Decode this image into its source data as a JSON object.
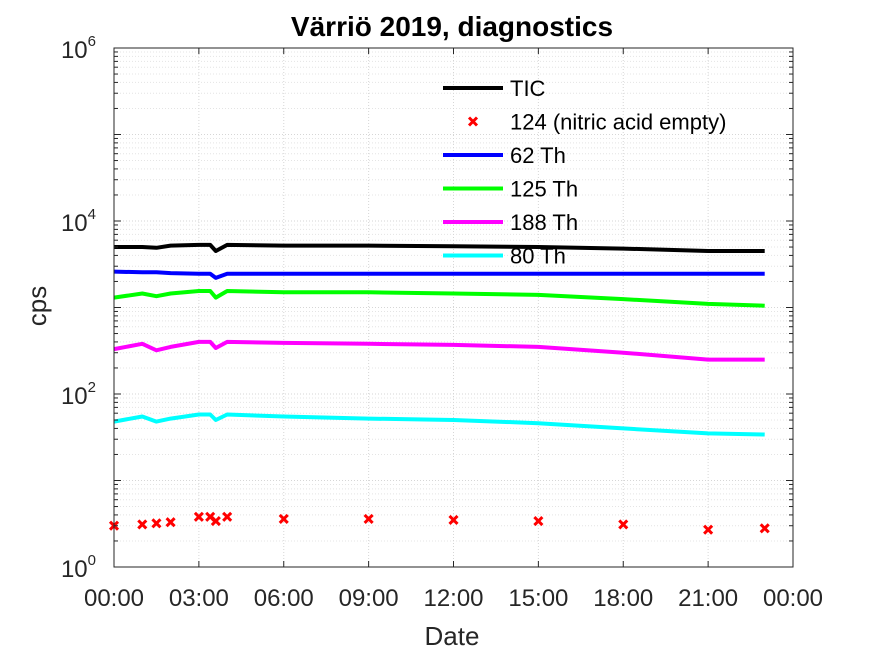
{
  "chart_data": {
    "type": "line",
    "title": "Värriö 2019, diagnostics",
    "xlabel": "Date",
    "ylabel": "cps",
    "yscale": "log",
    "ylim": [
      1,
      1000000
    ],
    "xlim": [
      "00:00",
      "00:00"
    ],
    "x_ticks": [
      "00:00",
      "03:00",
      "06:00",
      "09:00",
      "12:00",
      "15:00",
      "18:00",
      "21:00",
      "00:00"
    ],
    "y_ticks": [
      {
        "base": "10",
        "exp": "0"
      },
      {
        "base": "10",
        "exp": "2"
      },
      {
        "base": "10",
        "exp": "4"
      },
      {
        "base": "10",
        "exp": "6"
      }
    ],
    "grid": true,
    "legend_position": "top-right",
    "x_hours": [
      0,
      1,
      1.5,
      2,
      3,
      3.4,
      3.6,
      4,
      6,
      9,
      12,
      15,
      18,
      21,
      23
    ],
    "series": [
      {
        "name": "TIC",
        "color": "#000000",
        "style": "line",
        "values": [
          5000,
          5000,
          4900,
          5200,
          5300,
          5300,
          4500,
          5300,
          5200,
          5200,
          5100,
          5000,
          4800,
          4500,
          4500
        ]
      },
      {
        "name": "124 (nitric acid empty)",
        "color": "#ff0000",
        "style": "marker",
        "values": [
          3.0,
          3.1,
          3.2,
          3.3,
          3.8,
          3.8,
          3.4,
          3.8,
          3.6,
          3.6,
          3.5,
          3.4,
          3.1,
          2.7,
          2.8
        ]
      },
      {
        "name": "62 Th",
        "color": "#0000ff",
        "style": "line",
        "values": [
          2600,
          2550,
          2550,
          2500,
          2450,
          2450,
          2200,
          2450,
          2450,
          2450,
          2450,
          2450,
          2450,
          2450,
          2450
        ]
      },
      {
        "name": "125 Th",
        "color": "#00ff00",
        "style": "line",
        "values": [
          1300,
          1450,
          1350,
          1450,
          1550,
          1550,
          1300,
          1550,
          1500,
          1500,
          1450,
          1400,
          1250,
          1100,
          1050
        ]
      },
      {
        "name": "188 Th",
        "color": "#ff00ff",
        "style": "line",
        "values": [
          330,
          380,
          320,
          350,
          400,
          400,
          340,
          400,
          390,
          380,
          370,
          350,
          300,
          250,
          250
        ]
      },
      {
        "name": "80 Th",
        "color": "#00ffff",
        "style": "line",
        "values": [
          48,
          55,
          48,
          52,
          58,
          58,
          50,
          58,
          55,
          52,
          50,
          46,
          40,
          35,
          34
        ]
      }
    ]
  }
}
